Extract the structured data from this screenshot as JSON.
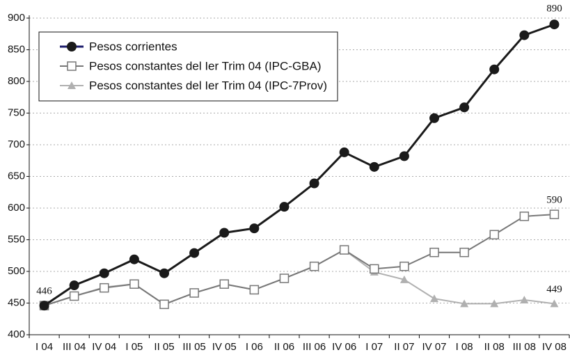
{
  "chart_data": {
    "type": "line",
    "categories": [
      "I 04",
      "III 04",
      "IV 04",
      "I 05",
      "II 05",
      "III 05",
      "IV 05",
      "I 06",
      "II 06",
      "III 06",
      "IV 06",
      "I 07",
      "II 07",
      "IV 07",
      "I 08",
      "II 08",
      "III 08",
      "IV 08"
    ],
    "series": [
      {
        "name": "Pesos corrientes",
        "color": "#1a1a1a",
        "marker": "circle",
        "values": [
          446,
          478,
          497,
          519,
          497,
          529,
          561,
          568,
          602,
          639,
          688,
          665,
          682,
          742,
          759,
          819,
          873,
          890
        ]
      },
      {
        "name": "Pesos constantes del Ier Trim 04 (IPC-GBA)",
        "color": "#777777",
        "marker": "square",
        "values": [
          446,
          461,
          474,
          480,
          448,
          466,
          480,
          471,
          489,
          508,
          534,
          504,
          508,
          530,
          530,
          558,
          587,
          590
        ]
      },
      {
        "name": "Pesos constantes del Ier Trim 04 (IPC-7Prov)",
        "color": "#b0b0b0",
        "marker": "triangle",
        "values": [
          446,
          461,
          475,
          480,
          448,
          466,
          480,
          471,
          489,
          508,
          534,
          499,
          487,
          457,
          449,
          449,
          455,
          449
        ]
      }
    ],
    "ylim": [
      400,
      900
    ],
    "yticks": [
      400,
      450,
      500,
      550,
      600,
      650,
      700,
      750,
      800,
      850,
      900
    ],
    "grid": true,
    "legend": "top-left"
  }
}
